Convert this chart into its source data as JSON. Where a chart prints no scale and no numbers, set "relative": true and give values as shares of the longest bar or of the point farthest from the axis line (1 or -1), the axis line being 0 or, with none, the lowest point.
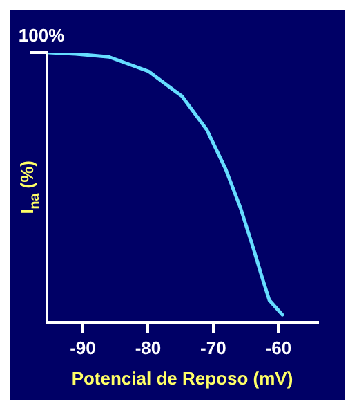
{
  "chart_data": {
    "type": "line",
    "relative": true,
    "xlabel": "Potencial de Reposo (mV)",
    "ylabel": "I$_{na}$ (%)",
    "x": [
      -95.2,
      -91.1,
      -86.0,
      -79.9,
      -74.8,
      -71.0,
      -68.1,
      -65.8,
      -63.8,
      -62.6,
      -61.4,
      -59.4
    ],
    "series": [
      {
        "color": "#66ddff",
        "values": [
          1.0,
          0.995,
          0.984,
          0.93,
          0.838,
          0.714,
          0.568,
          0.422,
          0.27,
          0.173,
          0.081,
          0.027
        ]
      }
    ],
    "xlim": [
      -95.5,
      -54
    ],
    "xticks": [
      -90,
      -80,
      -70,
      -60
    ],
    "annotations": [
      {
        "text": "100%",
        "x": -95.5,
        "y": 1
      }
    ],
    "grid": false,
    "legend": false,
    "marker": "none",
    "line_style": "solid"
  }
}
